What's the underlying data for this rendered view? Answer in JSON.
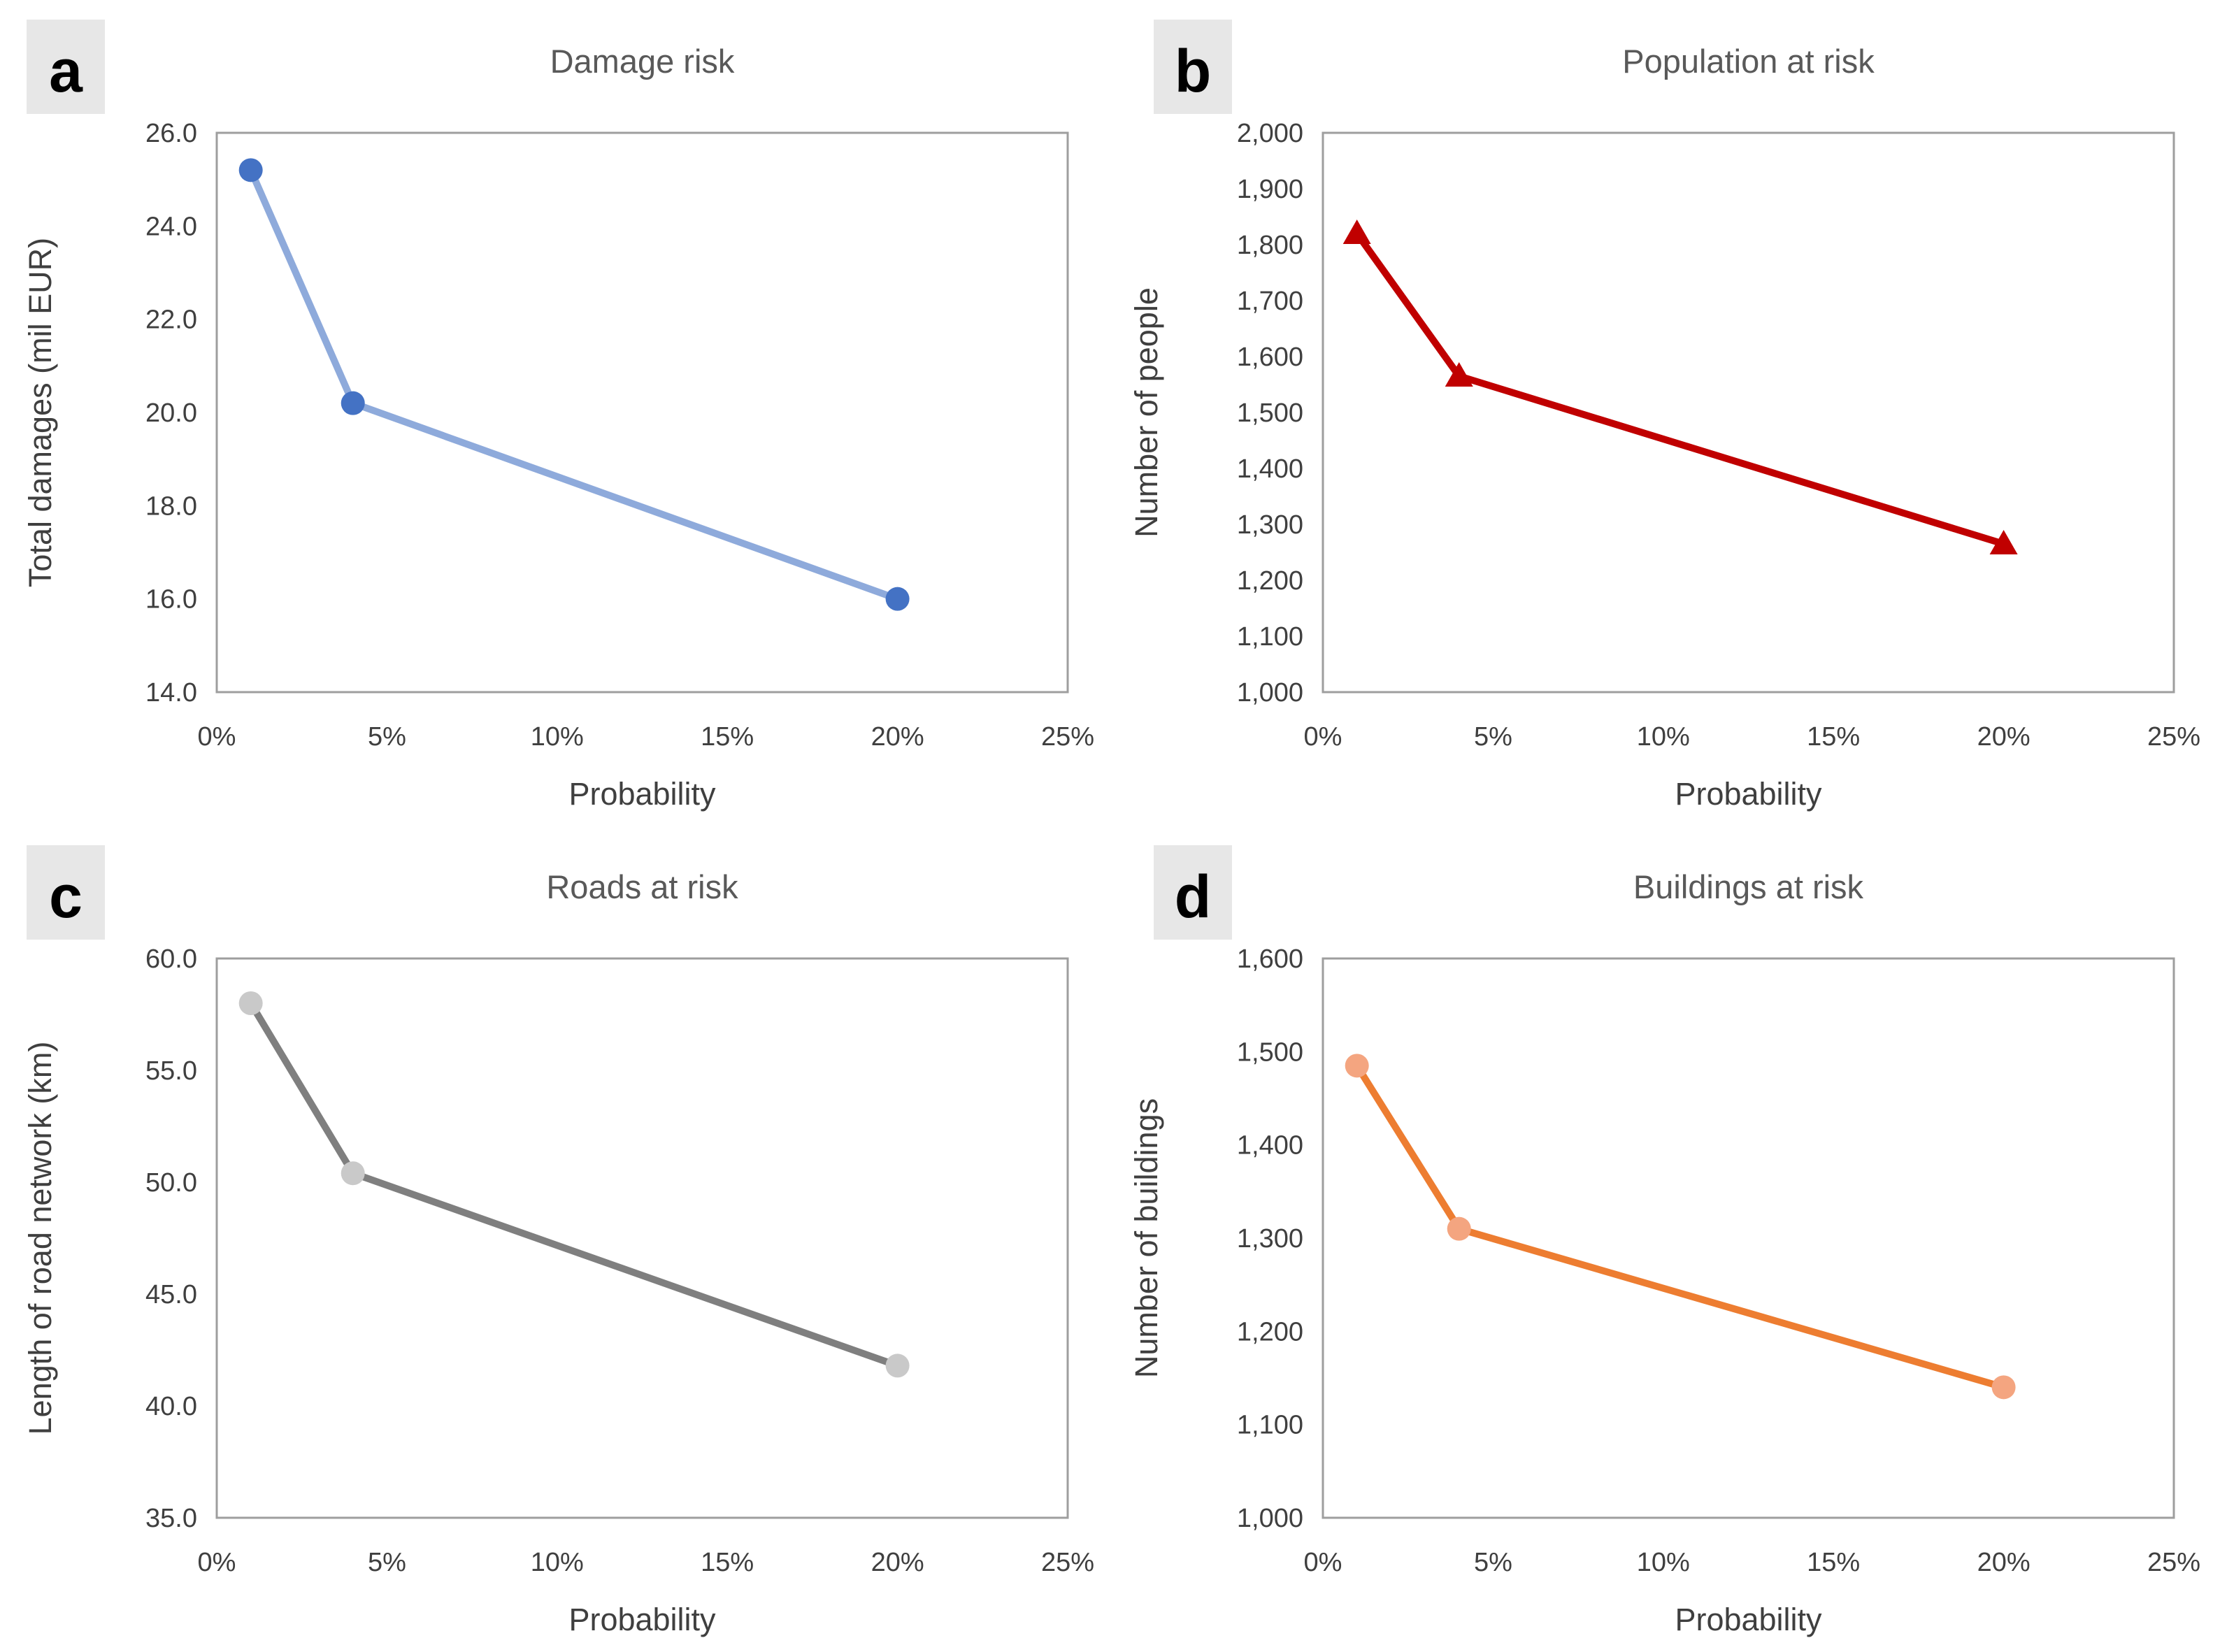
{
  "styles": {
    "background": "#FFFFFF",
    "plot_border_color": "#9E9E9E",
    "chart_title_color": "#595959",
    "tick_label_color": "#3F3F3F",
    "axis_title_color": "#3F3F3F",
    "panel_label_bg": "#E7E7E7",
    "panel_label_color": "#000000"
  },
  "chart_data": [
    {
      "panel_label": "a",
      "type": "line",
      "title": "Damage risk",
      "xlabel": "Probability",
      "ylabel": "Total damages (mil EUR)",
      "x": [
        1,
        4,
        20
      ],
      "values": [
        25.2,
        20.2,
        16.0
      ],
      "xlim": [
        0,
        25
      ],
      "ylim": [
        14,
        26
      ],
      "x_ticks": {
        "values": [
          0,
          5,
          10,
          15,
          20,
          25
        ],
        "labels": [
          "0%",
          "5%",
          "10%",
          "15%",
          "20%",
          "25%"
        ]
      },
      "y_ticks": {
        "values": [
          14,
          16,
          18,
          20,
          22,
          24,
          26
        ],
        "labels": [
          "14.0",
          "16.0",
          "18.0",
          "20.0",
          "22.0",
          "24.0",
          "26.0"
        ]
      },
      "grid": false,
      "legend": false,
      "marker": "circle",
      "line_color": "#8EAADB",
      "marker_color": "#4472C4"
    },
    {
      "panel_label": "b",
      "type": "line",
      "title": "Population at risk",
      "xlabel": "Probability",
      "ylabel": "Number of people",
      "x": [
        1,
        4,
        20
      ],
      "values": [
        1820,
        1565,
        1265
      ],
      "xlim": [
        0,
        25
      ],
      "ylim": [
        1000,
        2000
      ],
      "x_ticks": {
        "values": [
          0,
          5,
          10,
          15,
          20,
          25
        ],
        "labels": [
          "0%",
          "5%",
          "10%",
          "15%",
          "20%",
          "25%"
        ]
      },
      "y_ticks": {
        "values": [
          1000,
          1100,
          1200,
          1300,
          1400,
          1500,
          1600,
          1700,
          1800,
          1900,
          2000
        ],
        "labels": [
          "1,000",
          "1,100",
          "1,200",
          "1,300",
          "1,400",
          "1,500",
          "1,600",
          "1,700",
          "1,800",
          "1,900",
          "2,000"
        ]
      },
      "grid": false,
      "legend": false,
      "marker": "triangle",
      "line_color": "#C00000",
      "marker_color": "#C00000"
    },
    {
      "panel_label": "c",
      "type": "line",
      "title": "Roads at risk",
      "xlabel": "Probability",
      "ylabel": "Length of road network (km)",
      "x": [
        1,
        4,
        20
      ],
      "values": [
        58.0,
        50.4,
        41.8
      ],
      "xlim": [
        0,
        25
      ],
      "ylim": [
        35,
        60
      ],
      "x_ticks": {
        "values": [
          0,
          5,
          10,
          15,
          20,
          25
        ],
        "labels": [
          "0%",
          "5%",
          "10%",
          "15%",
          "20%",
          "25%"
        ]
      },
      "y_ticks": {
        "values": [
          35,
          40,
          45,
          50,
          55,
          60
        ],
        "labels": [
          "35.0",
          "40.0",
          "45.0",
          "50.0",
          "55.0",
          "60.0"
        ]
      },
      "grid": false,
      "legend": false,
      "marker": "circle",
      "line_color": "#7F7F7F",
      "marker_color": "#C9C9C9"
    },
    {
      "panel_label": "d",
      "type": "line",
      "title": "Buildings at risk",
      "xlabel": "Probability",
      "ylabel": "Number of buildings",
      "x": [
        1,
        4,
        20
      ],
      "values": [
        1485,
        1310,
        1140
      ],
      "xlim": [
        0,
        25
      ],
      "ylim": [
        1000,
        1600
      ],
      "x_ticks": {
        "values": [
          0,
          5,
          10,
          15,
          20,
          25
        ],
        "labels": [
          "0%",
          "5%",
          "10%",
          "15%",
          "20%",
          "25%"
        ]
      },
      "y_ticks": {
        "values": [
          1000,
          1100,
          1200,
          1300,
          1400,
          1500,
          1600
        ],
        "labels": [
          "1,000",
          "1,100",
          "1,200",
          "1,300",
          "1,400",
          "1,500",
          "1,600"
        ]
      },
      "grid": false,
      "legend": false,
      "marker": "circle",
      "line_color": "#ED7D31",
      "marker_color": "#F4A580"
    }
  ]
}
